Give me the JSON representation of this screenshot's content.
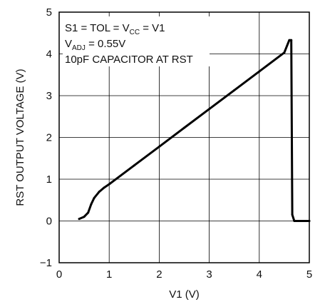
{
  "chart_data": {
    "type": "line",
    "title": "",
    "xlabel": "V1 (V)",
    "ylabel": "RST OUTPUT VOLTAGE (V)",
    "xlim": [
      0,
      5
    ],
    "ylim": [
      -1,
      5
    ],
    "xticks": [
      "0",
      "1",
      "2",
      "3",
      "4",
      "5"
    ],
    "yticks": [
      "−1",
      "0",
      "1",
      "2",
      "3",
      "4",
      "5"
    ],
    "grid": true,
    "series": [
      {
        "x": [
          0.4,
          0.5,
          0.58,
          0.64,
          0.7,
          0.8,
          0.9,
          1.0,
          1.5,
          2.0,
          2.5,
          3.0,
          3.5,
          4.0,
          4.5,
          4.6,
          4.64,
          4.66,
          4.7,
          5.0
        ],
        "y": [
          0.05,
          0.1,
          0.2,
          0.4,
          0.55,
          0.7,
          0.8,
          0.88,
          1.33,
          1.78,
          2.23,
          2.68,
          3.13,
          3.58,
          4.03,
          4.33,
          4.33,
          0.15,
          0.0,
          0.0
        ]
      }
    ],
    "annotations": [
      {
        "parts": [
          "S1 =  TOL = V",
          "CC",
          " = V1"
        ]
      },
      {
        "parts": [
          "V",
          "ADJ",
          " = 0.55V"
        ]
      },
      {
        "parts": [
          "10pF CAPACITOR AT RST"
        ]
      }
    ]
  }
}
